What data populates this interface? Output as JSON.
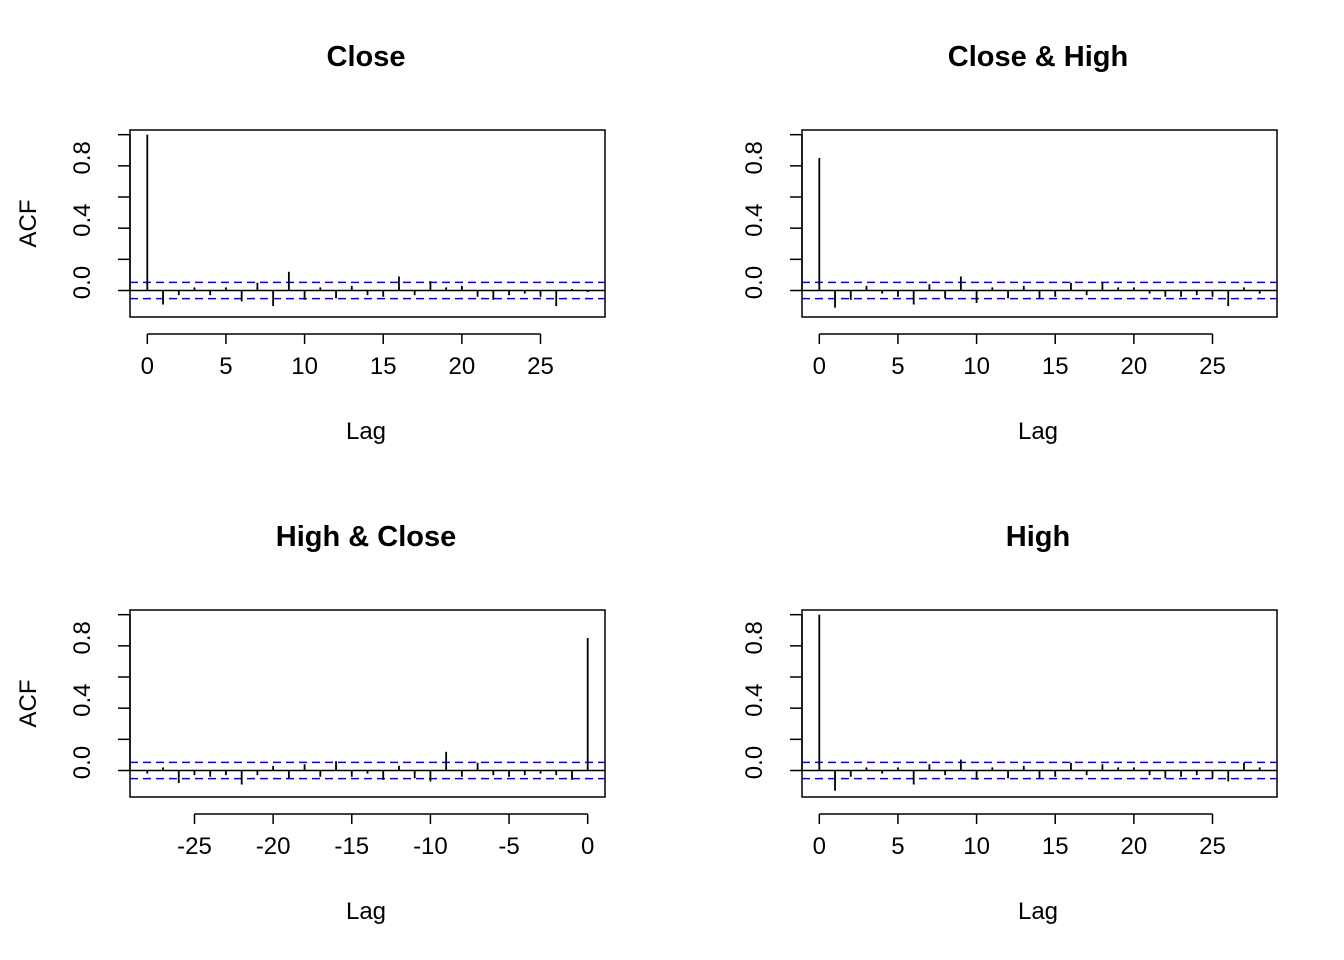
{
  "chart_data": [
    {
      "type": "bar",
      "title": "Close",
      "xlabel": "Lag",
      "ylabel": "ACF",
      "xticks": [
        0,
        5,
        10,
        15,
        20,
        25
      ],
      "yticks": [
        0.0,
        0.4,
        0.8
      ],
      "xlim": [
        -1.1,
        29.1
      ],
      "ylim": [
        -0.17,
        1.03
      ],
      "ci": [
        0.052,
        -0.052
      ],
      "lags": [
        0,
        1,
        2,
        3,
        4,
        5,
        6,
        7,
        8,
        9,
        10,
        11,
        12,
        13,
        14,
        15,
        16,
        17,
        18,
        19,
        20,
        21,
        22,
        23,
        24,
        25,
        26,
        27,
        28
      ],
      "values": [
        1.0,
        -0.09,
        -0.03,
        0.02,
        -0.03,
        0.02,
        -0.07,
        0.05,
        -0.1,
        0.12,
        -0.06,
        0.02,
        -0.05,
        0.03,
        -0.03,
        -0.04,
        0.09,
        -0.03,
        0.06,
        0.02,
        0.03,
        -0.04,
        -0.06,
        -0.03,
        -0.02,
        -0.04,
        -0.1,
        0.01,
        -0.01
      ]
    },
    {
      "type": "bar",
      "title": "Close & High",
      "xlabel": "Lag",
      "ylabel": "",
      "xticks": [
        0,
        5,
        10,
        15,
        20,
        25
      ],
      "yticks": [
        0.0,
        0.4,
        0.8
      ],
      "xlim": [
        -1.1,
        29.1
      ],
      "ylim": [
        -0.17,
        1.03
      ],
      "ci": [
        0.052,
        -0.052
      ],
      "lags": [
        0,
        1,
        2,
        3,
        4,
        5,
        6,
        7,
        8,
        9,
        10,
        11,
        12,
        13,
        14,
        15,
        16,
        17,
        18,
        19,
        20,
        21,
        22,
        23,
        24,
        25,
        26,
        27,
        28
      ],
      "values": [
        0.85,
        -0.11,
        -0.06,
        0.03,
        -0.02,
        -0.04,
        -0.09,
        0.04,
        -0.05,
        0.09,
        -0.08,
        0.02,
        -0.05,
        0.03,
        -0.05,
        -0.04,
        0.05,
        -0.03,
        0.05,
        0.02,
        0.02,
        -0.02,
        -0.04,
        -0.04,
        -0.03,
        -0.04,
        -0.1,
        0.02,
        -0.02
      ]
    },
    {
      "type": "bar",
      "title": "High & Close",
      "xlabel": "Lag",
      "ylabel": "ACF",
      "xticks": [
        -25,
        -20,
        -15,
        -10,
        -5,
        0
      ],
      "yticks": [
        0.0,
        0.4,
        0.8
      ],
      "xlim": [
        -29.1,
        1.1
      ],
      "ylim": [
        -0.17,
        1.03
      ],
      "ci": [
        0.052,
        -0.052
      ],
      "lags": [
        -28,
        -27,
        -26,
        -25,
        -24,
        -23,
        -22,
        -21,
        -20,
        -19,
        -18,
        -17,
        -16,
        -15,
        -14,
        -13,
        -12,
        -11,
        -10,
        -9,
        -8,
        -7,
        -6,
        -5,
        -4,
        -3,
        -2,
        -1,
        0
      ],
      "values": [
        -0.02,
        0.02,
        -0.08,
        -0.03,
        -0.04,
        -0.03,
        -0.09,
        -0.03,
        0.03,
        -0.05,
        0.04,
        -0.04,
        0.06,
        -0.04,
        -0.02,
        -0.06,
        0.03,
        -0.05,
        -0.07,
        0.12,
        -0.04,
        0.05,
        -0.03,
        -0.04,
        -0.03,
        -0.02,
        -0.03,
        -0.06,
        0.85
      ]
    },
    {
      "type": "bar",
      "title": "High",
      "xlabel": "Lag",
      "ylabel": "",
      "xticks": [
        0,
        5,
        10,
        15,
        20,
        25
      ],
      "yticks": [
        0.0,
        0.4,
        0.8
      ],
      "xlim": [
        -1.1,
        29.1
      ],
      "ylim": [
        -0.17,
        1.03
      ],
      "ci": [
        0.052,
        -0.052
      ],
      "lags": [
        0,
        1,
        2,
        3,
        4,
        5,
        6,
        7,
        8,
        9,
        10,
        11,
        12,
        13,
        14,
        15,
        16,
        17,
        18,
        19,
        20,
        21,
        22,
        23,
        24,
        25,
        26,
        27,
        28
      ],
      "values": [
        1.0,
        -0.13,
        -0.04,
        0.02,
        -0.02,
        0.02,
        -0.09,
        0.04,
        -0.03,
        0.07,
        -0.06,
        0.02,
        -0.05,
        0.03,
        -0.05,
        -0.04,
        0.05,
        -0.03,
        0.04,
        0.02,
        0.02,
        -0.03,
        -0.05,
        -0.04,
        -0.03,
        -0.05,
        -0.07,
        0.05,
        0.02
      ]
    }
  ],
  "colors": {
    "bars": "#000000",
    "ci": "#0000ff",
    "axis": "#000000"
  }
}
